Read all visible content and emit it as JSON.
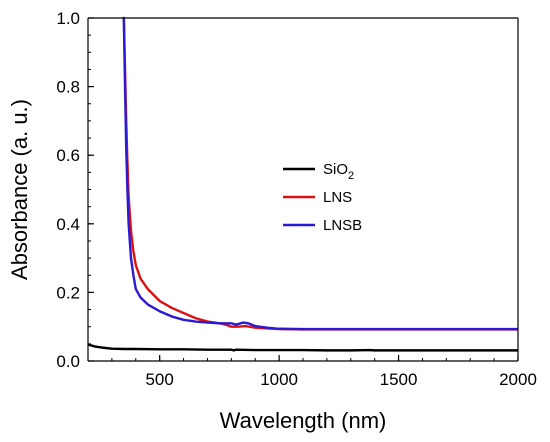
{
  "chart_data": {
    "type": "line",
    "title": "",
    "xlabel": "Wavelength (nm)",
    "ylabel": "Absorbance (a. u.)",
    "xlim": [
      200,
      2000
    ],
    "ylim": [
      0.0,
      1.0
    ],
    "x_ticks": [
      {
        "value": 500,
        "label": "500"
      },
      {
        "value": 1000,
        "label": "1000"
      },
      {
        "value": 1500,
        "label": "1500"
      },
      {
        "value": 2000,
        "label": "2000"
      }
    ],
    "y_ticks": [
      {
        "value": 0.0,
        "label": "0.0"
      },
      {
        "value": 0.2,
        "label": "0.2"
      },
      {
        "value": 0.4,
        "label": "0.4"
      },
      {
        "value": 0.6,
        "label": "0.6"
      },
      {
        "value": 0.8,
        "label": "0.8"
      },
      {
        "value": 1.0,
        "label": "1.0"
      }
    ],
    "x_minor_step": 100,
    "y_minor_step": 0.05,
    "grid": false,
    "legend_position": "center-right",
    "legend": [
      {
        "key": "sio2",
        "label_main": "SiO",
        "label_sub": "2",
        "color": "#000000"
      },
      {
        "key": "lns",
        "label_main": "LNS",
        "label_sub": "",
        "color": "#dd1111"
      },
      {
        "key": "lnsb",
        "label_main": "LNSB",
        "label_sub": "",
        "color": "#2a1ad6"
      }
    ],
    "series": [
      {
        "key": "sio2",
        "name": "SiO2",
        "color": "#000000",
        "points": [
          [
            200,
            0.048
          ],
          [
            230,
            0.042
          ],
          [
            260,
            0.039
          ],
          [
            300,
            0.036
          ],
          [
            350,
            0.035
          ],
          [
            400,
            0.035
          ],
          [
            500,
            0.034
          ],
          [
            600,
            0.034
          ],
          [
            700,
            0.033
          ],
          [
            800,
            0.033
          ],
          [
            810,
            0.031
          ],
          [
            820,
            0.033
          ],
          [
            900,
            0.032
          ],
          [
            1000,
            0.032
          ],
          [
            1100,
            0.032
          ],
          [
            1200,
            0.031
          ],
          [
            1300,
            0.031
          ],
          [
            1380,
            0.032
          ],
          [
            1400,
            0.031
          ],
          [
            1500,
            0.031
          ],
          [
            1600,
            0.031
          ],
          [
            1700,
            0.031
          ],
          [
            1800,
            0.031
          ],
          [
            1900,
            0.031
          ],
          [
            2000,
            0.031
          ]
        ]
      },
      {
        "key": "lns",
        "name": "LNS",
        "color": "#dd1111",
        "points": [
          [
            350,
            1.0
          ],
          [
            355,
            0.85
          ],
          [
            360,
            0.7
          ],
          [
            365,
            0.58
          ],
          [
            370,
            0.48
          ],
          [
            380,
            0.38
          ],
          [
            390,
            0.32
          ],
          [
            400,
            0.28
          ],
          [
            420,
            0.24
          ],
          [
            450,
            0.21
          ],
          [
            500,
            0.175
          ],
          [
            550,
            0.155
          ],
          [
            600,
            0.14
          ],
          [
            650,
            0.125
          ],
          [
            700,
            0.115
          ],
          [
            750,
            0.11
          ],
          [
            780,
            0.105
          ],
          [
            800,
            0.1
          ],
          [
            830,
            0.1
          ],
          [
            860,
            0.102
          ],
          [
            900,
            0.097
          ],
          [
            950,
            0.095
          ],
          [
            1000,
            0.093
          ],
          [
            1100,
            0.092
          ],
          [
            1200,
            0.092
          ],
          [
            1300,
            0.092
          ],
          [
            1400,
            0.092
          ],
          [
            1500,
            0.092
          ],
          [
            1600,
            0.092
          ],
          [
            1700,
            0.092
          ],
          [
            1800,
            0.092
          ],
          [
            1900,
            0.092
          ],
          [
            2000,
            0.092
          ]
        ]
      },
      {
        "key": "lnsb",
        "name": "LNSB",
        "color": "#2a1ad6",
        "points": [
          [
            350,
            1.0
          ],
          [
            355,
            0.8
          ],
          [
            360,
            0.62
          ],
          [
            365,
            0.5
          ],
          [
            370,
            0.4
          ],
          [
            380,
            0.3
          ],
          [
            390,
            0.25
          ],
          [
            400,
            0.21
          ],
          [
            420,
            0.185
          ],
          [
            450,
            0.165
          ],
          [
            500,
            0.145
          ],
          [
            550,
            0.13
          ],
          [
            600,
            0.12
          ],
          [
            650,
            0.115
          ],
          [
            700,
            0.112
          ],
          [
            750,
            0.11
          ],
          [
            800,
            0.11
          ],
          [
            820,
            0.106
          ],
          [
            850,
            0.112
          ],
          [
            870,
            0.11
          ],
          [
            900,
            0.102
          ],
          [
            950,
            0.097
          ],
          [
            1000,
            0.094
          ],
          [
            1100,
            0.093
          ],
          [
            1200,
            0.093
          ],
          [
            1300,
            0.093
          ],
          [
            1400,
            0.093
          ],
          [
            1500,
            0.093
          ],
          [
            1600,
            0.093
          ],
          [
            1700,
            0.093
          ],
          [
            1800,
            0.093
          ],
          [
            1900,
            0.093
          ],
          [
            2000,
            0.093
          ]
        ]
      }
    ]
  }
}
